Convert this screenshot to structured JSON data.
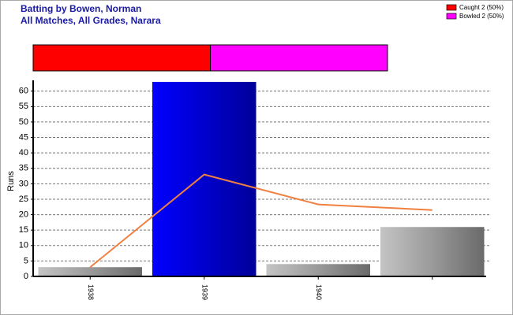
{
  "chart_data": {
    "type": "bar",
    "title": "Batting by Bowen, Norman",
    "subtitle": "All Matches, All Grades, Narara",
    "y_label": "Runs",
    "categories": [
      "1938",
      "1939",
      "1940",
      null
    ],
    "values": [
      3,
      63,
      4,
      16
    ],
    "color": "#8c8c8c",
    "highlight_color": "#0000ee",
    "highlight_index": 1,
    "line": {
      "color": "#f08040",
      "values": [
        3,
        33,
        23.3,
        21.5
      ]
    },
    "ylim": [
      0,
      63.5
    ],
    "yticks": [
      0,
      5,
      10,
      15,
      20,
      25,
      30,
      35,
      40,
      45,
      50,
      55,
      60
    ],
    "grid": true,
    "dismissals": [
      {
        "name": "Caught 2 (50%)",
        "value": 50,
        "color": "#ff0000"
      },
      {
        "name": "Bowled 2 (50%)",
        "value": 50,
        "color": "#ff00ff"
      }
    ]
  }
}
